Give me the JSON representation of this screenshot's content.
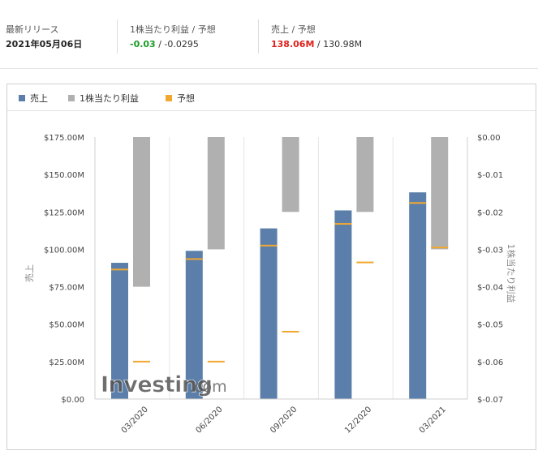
{
  "header": {
    "release": {
      "label": "最新リリース",
      "value": "2021年05月06日"
    },
    "eps": {
      "label": "1株当たり利益 / 予想",
      "actual": "-0.03",
      "separator": " / ",
      "forecast": "-0.0295",
      "actual_color": "#1a9c28"
    },
    "revenue": {
      "label": "売上 / 予想",
      "actual": "138.06M",
      "separator": " / ",
      "forecast": "130.98M",
      "actual_color": "#e0211b"
    }
  },
  "legend": {
    "items": [
      {
        "label": "売上",
        "color": "#5b7faa"
      },
      {
        "label": "1株当たり利益",
        "color": "#b0b0b0"
      },
      {
        "label": "予想",
        "color": "#f0a830"
      }
    ]
  },
  "watermark": {
    "brand": "Investing",
    "suffix": ".com"
  },
  "chart_data": {
    "type": "bar",
    "categories": [
      "03/2020",
      "06/2020",
      "09/2020",
      "12/2020",
      "03/2021"
    ],
    "series": [
      {
        "name": "売上",
        "axis": "left",
        "values": [
          91.0,
          99.0,
          114.0,
          126.0,
          138.06
        ],
        "forecast": [
          86.5,
          93.5,
          102.5,
          117.0,
          130.98
        ],
        "color": "#5b7faa",
        "forecast_color": "#f0a830"
      },
      {
        "name": "1株当たり利益",
        "axis": "right",
        "values": [
          -0.04,
          -0.03,
          -0.02,
          -0.02,
          -0.03
        ],
        "forecast": [
          -0.06,
          -0.06,
          -0.052,
          -0.0335,
          -0.0295
        ],
        "color": "#b0b0b0",
        "forecast_color": "#f0a830"
      }
    ],
    "left_axis": {
      "label": "売上",
      "min": 0,
      "max": 175,
      "tick_step": 25,
      "tick_labels": [
        "$0.00",
        "$25.00M",
        "$50.00M",
        "$75.00M",
        "$100.00M",
        "$125.00M",
        "$150.00M",
        "$175.00M"
      ]
    },
    "right_axis": {
      "label": "1株当たり利益",
      "min": -0.07,
      "max": 0,
      "tick_labels": [
        "$-0.07",
        "$-0.06",
        "$-0.05",
        "$-0.04",
        "$-0.03",
        "$-0.02",
        "$-0.01",
        "$0.00"
      ]
    },
    "grid": "vertical",
    "legend_position": "top-left"
  }
}
